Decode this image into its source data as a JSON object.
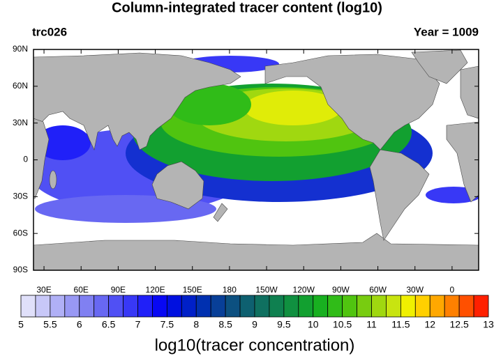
{
  "title": "Column-integrated tracer content (log10)",
  "left_label": "trc026",
  "right_label": "Year = 1009",
  "lat_labels": [
    "90N",
    "60N",
    "30N",
    "0",
    "30S",
    "60S",
    "90S"
  ],
  "lon_labels": [
    "30E",
    "60E",
    "90E",
    "120E",
    "150E",
    "180",
    "150W",
    "120W",
    "90W",
    "60W",
    "30W",
    "0"
  ],
  "colorbar": {
    "colors": [
      "#e0e0fa",
      "#c8c8f8",
      "#b0b0f6",
      "#9898f4",
      "#8080f2",
      "#6868f2",
      "#5050f4",
      "#3838f6",
      "#2020f8",
      "#0808f4",
      "#0010e0",
      "#0020c8",
      "#0030b0",
      "#083f98",
      "#0c5080",
      "#0e6070",
      "#0f7060",
      "#0f8050",
      "#109040",
      "#12a030",
      "#18b020",
      "#30bc18",
      "#50c410",
      "#78cc10",
      "#a0d810",
      "#c8e410",
      "#f0f000",
      "#ffd000",
      "#ffa800",
      "#ff8000",
      "#ff5000",
      "#ff2000"
    ],
    "labels": [
      "5",
      "5.5",
      "6",
      "6.5",
      "7",
      "7.5",
      "8",
      "8.5",
      "9",
      "9.5",
      "10",
      "10.5",
      "11",
      "11.5",
      "12",
      "12.5",
      "13"
    ],
    "title": "log10(tracer concentration)"
  }
}
